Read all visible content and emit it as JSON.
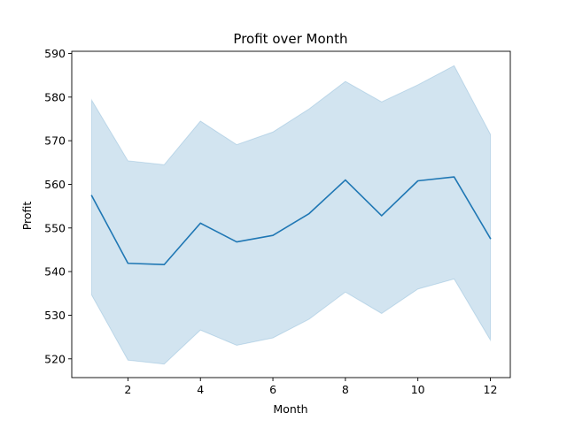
{
  "chart_data": {
    "type": "line",
    "title": "Profit over Month",
    "xlabel": "Month",
    "ylabel": "Profit",
    "xlim": [
      0.45,
      12.55
    ],
    "ylim": [
      515.7,
      590.5
    ],
    "xticks": [
      2,
      4,
      6,
      8,
      10,
      12
    ],
    "yticks": [
      520,
      530,
      540,
      550,
      560,
      570,
      580,
      590
    ],
    "grid": false,
    "legend": "none",
    "series": [
      {
        "x": [
          1,
          2,
          3,
          4,
          5,
          6,
          7,
          8,
          9,
          10,
          11,
          12
        ],
        "values": [
          557.4,
          541.9,
          541.6,
          551.1,
          546.8,
          548.3,
          553.3,
          561.0,
          552.8,
          560.8,
          561.7,
          547.6
        ],
        "ci_lower": [
          534.6,
          519.7,
          518.8,
          526.6,
          523.1,
          524.8,
          529.1,
          535.3,
          530.4,
          536.0,
          538.3,
          524.3
        ],
        "ci_upper": [
          579.3,
          565.4,
          564.5,
          574.5,
          569.1,
          572.0,
          577.3,
          583.6,
          578.9,
          582.8,
          587.2,
          571.5
        ],
        "color": "#1f77b4",
        "band_color": "#1f77b4"
      }
    ]
  }
}
